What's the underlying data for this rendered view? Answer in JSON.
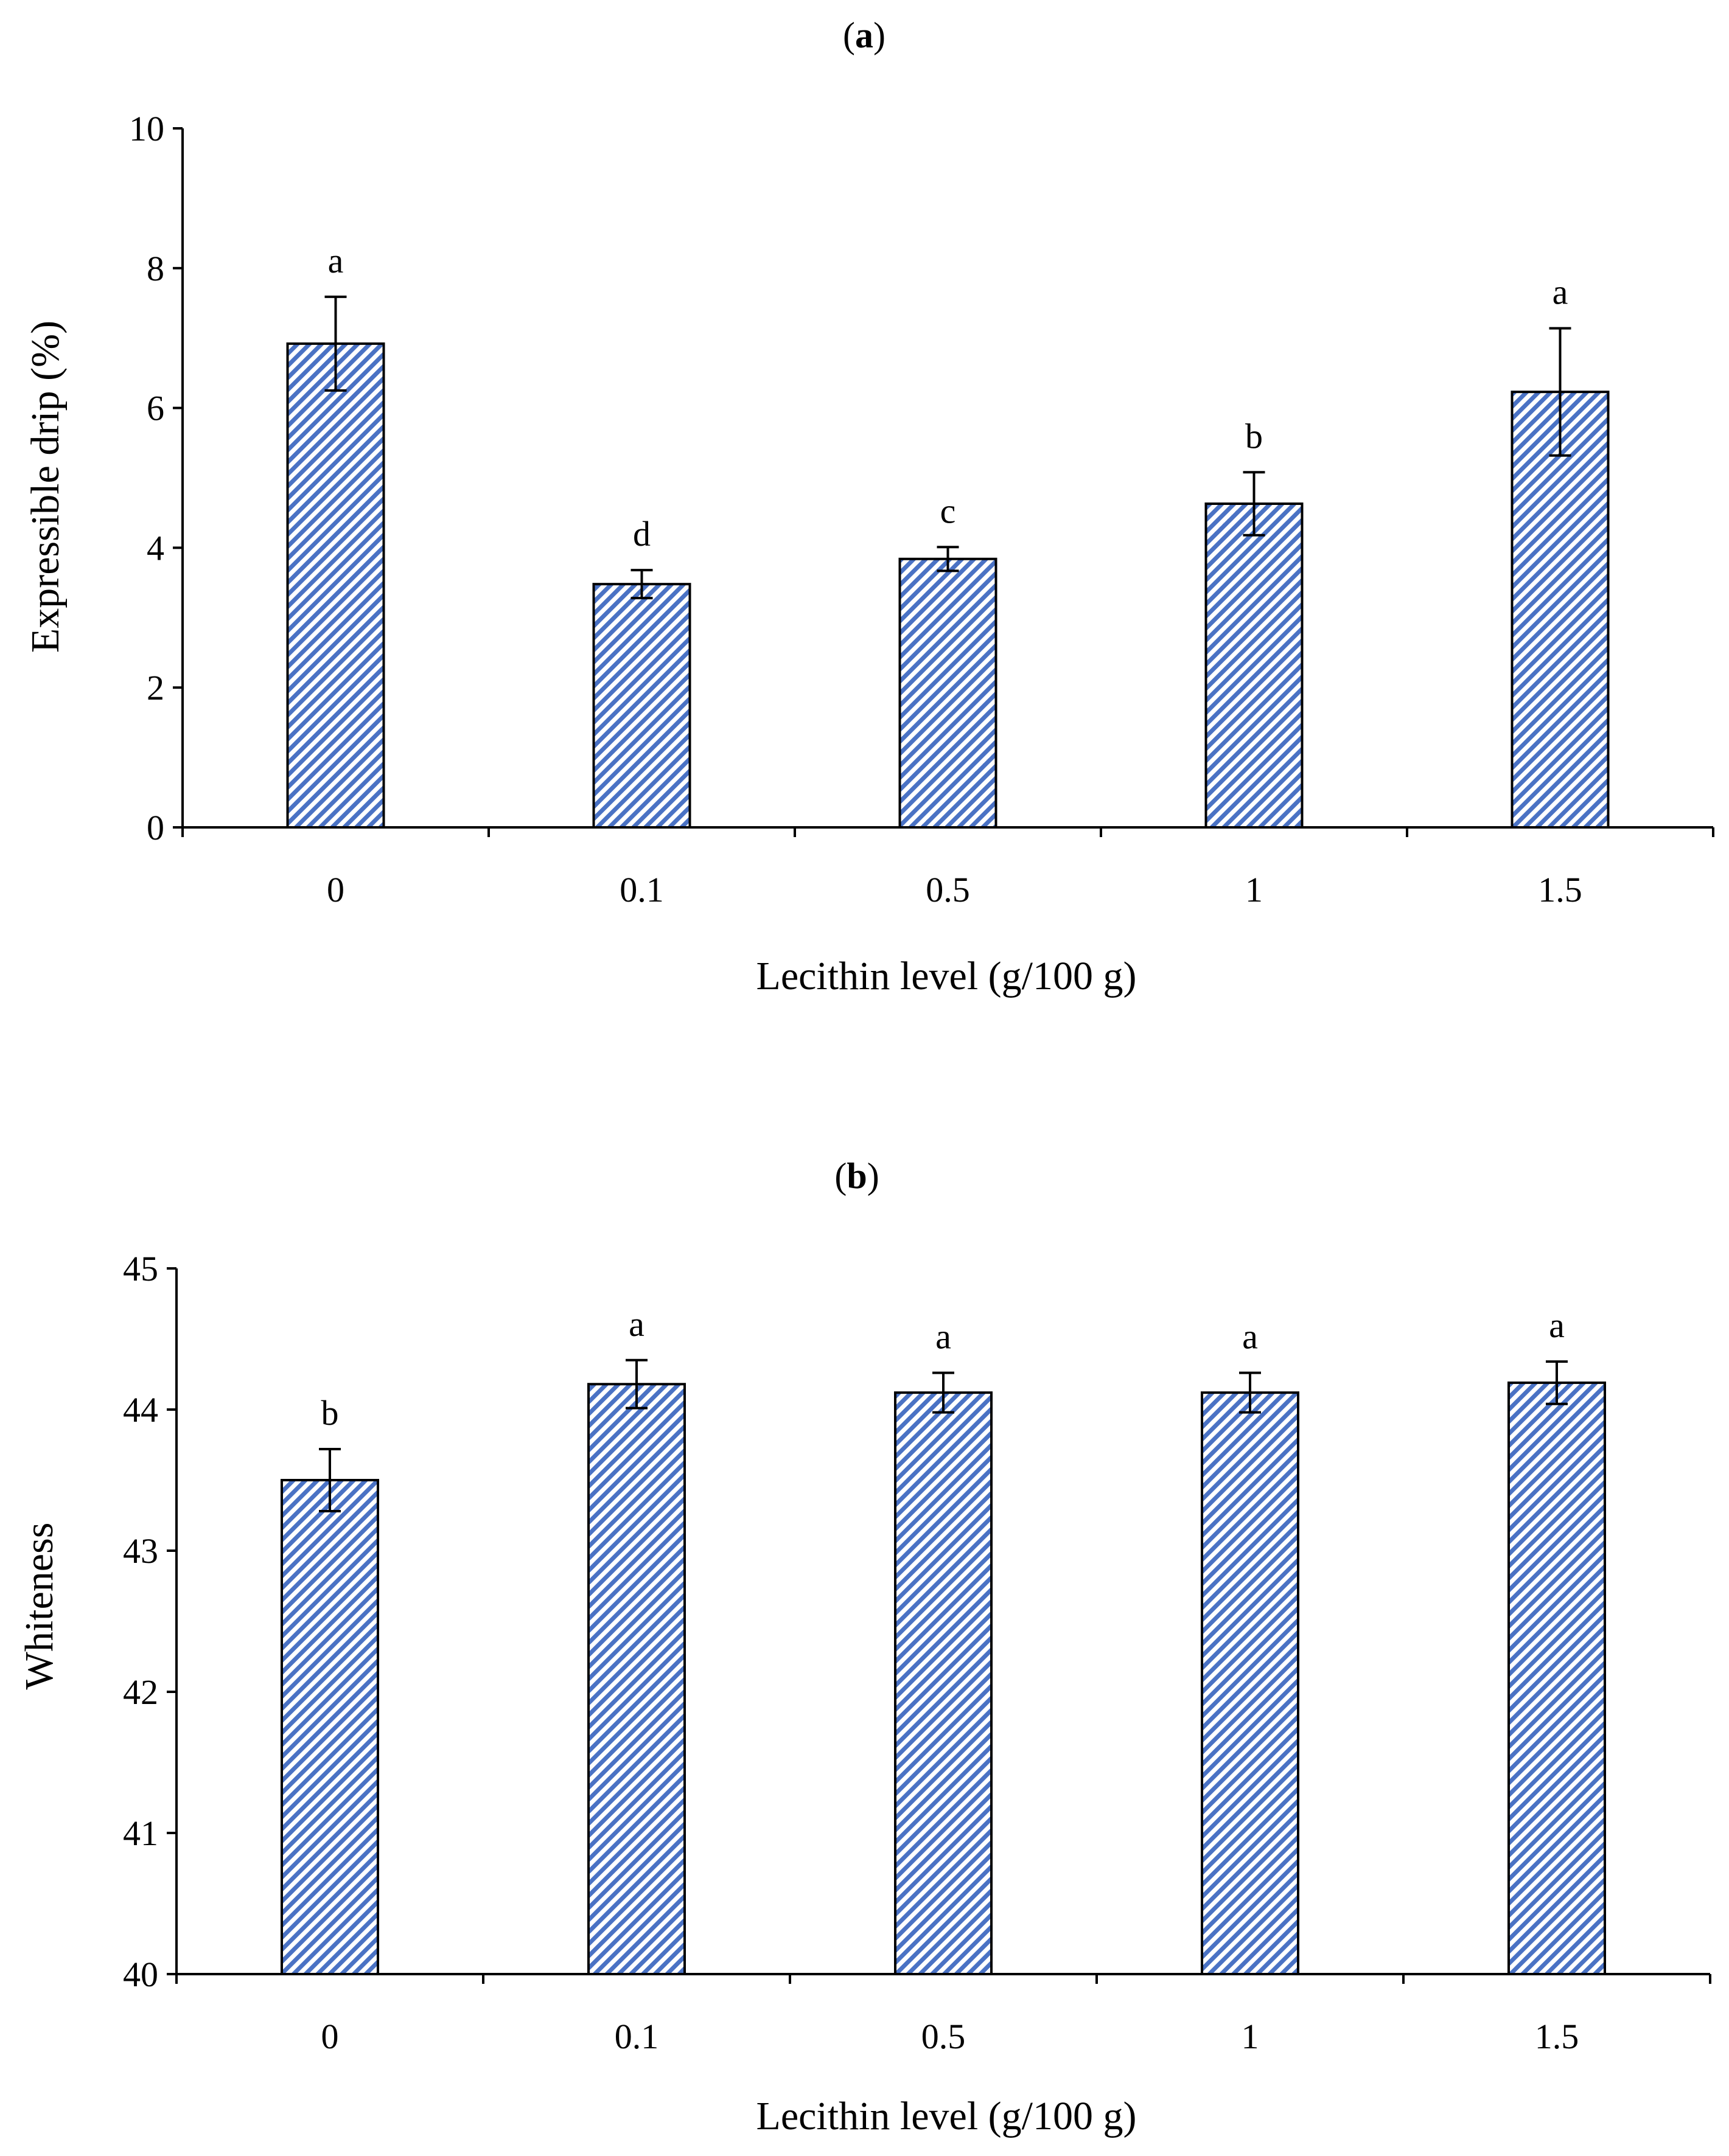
{
  "chart_data": [
    {
      "type": "bar",
      "panel_label": "a",
      "categories": [
        "0",
        "0.1",
        "0.5",
        "1",
        "1.5"
      ],
      "values": [
        6.92,
        3.48,
        3.84,
        4.63,
        6.23
      ],
      "errors": [
        0.67,
        0.2,
        0.17,
        0.45,
        0.91
      ],
      "significance": [
        "a",
        "d",
        "c",
        "b",
        "a"
      ],
      "xlabel": "Lecithin level (g/100 g)",
      "ylabel": "Expressible drip (%)",
      "ylim": [
        0,
        10
      ],
      "yticks": [
        "0",
        "2",
        "4",
        "6",
        "8",
        "10"
      ],
      "grid": false,
      "bar_color": "#4a72c4"
    },
    {
      "type": "bar",
      "panel_label": "b",
      "categories": [
        "0",
        "0.1",
        "0.5",
        "1",
        "1.5"
      ],
      "values": [
        43.5,
        44.18,
        44.12,
        44.12,
        44.19
      ],
      "errors": [
        0.22,
        0.17,
        0.14,
        0.14,
        0.15
      ],
      "significance": [
        "b",
        "a",
        "a",
        "a",
        "a"
      ],
      "xlabel": "Lecithin level (g/100 g)",
      "ylabel": "Whiteness",
      "ylim": [
        40,
        45
      ],
      "yticks": [
        "40",
        "41",
        "42",
        "43",
        "44",
        "45"
      ],
      "grid": false,
      "bar_color": "#4a72c4"
    }
  ]
}
